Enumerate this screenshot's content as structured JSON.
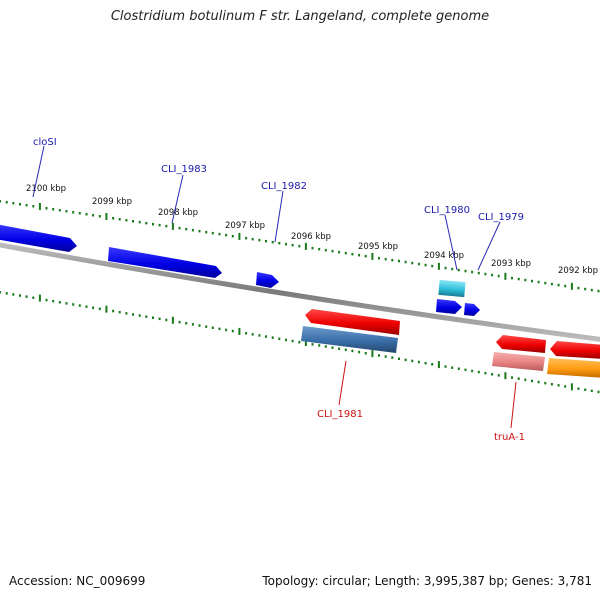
{
  "title": "Clostridium botulinum F str. Langeland, complete genome",
  "footer": {
    "accession": "Accession: NC_009699",
    "summary": "Topology: circular; Length: 3,995,387 bp; Genes: 3,781"
  },
  "colors": {
    "forward_gene": "#0a0aee",
    "reverse_gene": "#ee0a0a",
    "cds_forward": "#3a6ea8",
    "cds_reverse": "#e88a8a",
    "rrna_like": "#3fc1d8",
    "other": "#ff9a10",
    "backbone": "#8a8a8a",
    "ticks": "#1a7a1a",
    "forward_label": "#1a1aaa",
    "reverse_label": "#cc1010"
  },
  "scale_labels": [
    "2100 kbp",
    "2099 kbp",
    "2098 kbp",
    "2097 kbp",
    "2096 kbp",
    "2095 kbp",
    "2094 kbp",
    "2093 kbp",
    "2092 kbp"
  ],
  "gene_labels": {
    "forward": [
      "cloSI",
      "CLI_1983",
      "CLI_1982",
      "CLI_1980",
      "CLI_1979"
    ],
    "reverse": [
      "CLI_1981",
      "truA-1"
    ]
  }
}
